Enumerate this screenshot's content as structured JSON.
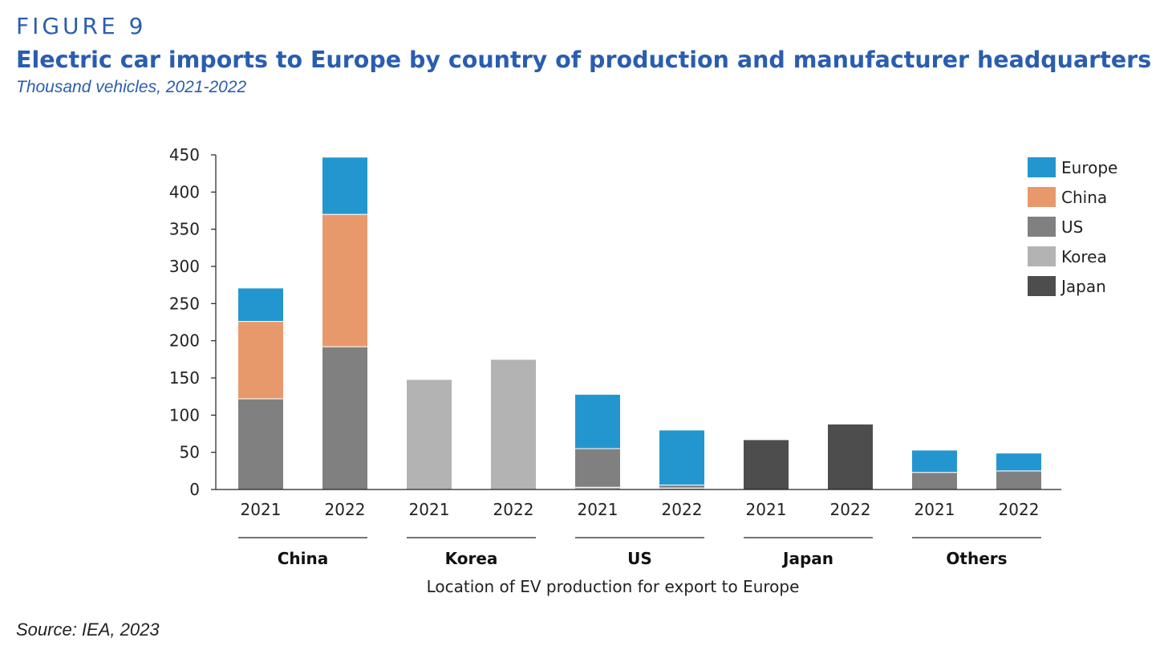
{
  "figure": {
    "label": "FIGURE 9",
    "title": "Electric car imports to Europe by country of production and manufacturer headquarters",
    "subtitle": "Thousand vehicles, 2021-2022",
    "source": "Source: IEA, 2023"
  },
  "chart_data": {
    "type": "bar",
    "stacked": true,
    "xlabel": "Location of EV production for export to Europe",
    "ylabel": "",
    "ylim": [
      0,
      450
    ],
    "yticks": [
      "0",
      "50",
      "100",
      "150",
      "200",
      "250",
      "300",
      "350",
      "400",
      "450"
    ],
    "groups": [
      {
        "name": "China",
        "years": [
          "2021",
          "2022"
        ]
      },
      {
        "name": "Korea",
        "years": [
          "2021",
          "2022"
        ]
      },
      {
        "name": "US",
        "years": [
          "2021",
          "2022"
        ]
      },
      {
        "name": "Japan",
        "years": [
          "2021",
          "2022"
        ]
      },
      {
        "name": "Others",
        "years": [
          "2021",
          "2022"
        ]
      }
    ],
    "categories": [
      "China 2021",
      "China 2022",
      "Korea 2021",
      "Korea 2022",
      "US 2021",
      "US 2022",
      "Japan 2021",
      "Japan 2022",
      "Others 2021",
      "Others 2022"
    ],
    "series": [
      {
        "name": "Japan",
        "color": "#4d4d4d",
        "values": [
          0,
          0,
          0,
          0,
          0,
          0,
          67,
          88,
          0,
          0
        ]
      },
      {
        "name": "Korea",
        "color": "#b3b3b3",
        "values": [
          0,
          0,
          148,
          175,
          3,
          2,
          0,
          0,
          0,
          0
        ]
      },
      {
        "name": "US",
        "color": "#808080",
        "values": [
          122,
          192,
          0,
          0,
          52,
          4,
          0,
          0,
          23,
          25
        ]
      },
      {
        "name": "China",
        "color": "#e8996b",
        "values": [
          104,
          178,
          0,
          0,
          0,
          0,
          0,
          0,
          0,
          0
        ]
      },
      {
        "name": "Europe",
        "color": "#2396d0",
        "values": [
          45,
          77,
          0,
          0,
          73,
          74,
          0,
          0,
          30,
          24
        ]
      }
    ],
    "legend": {
      "position": "top-right",
      "order": [
        "Europe",
        "China",
        "US",
        "Korea",
        "Japan"
      ]
    }
  }
}
